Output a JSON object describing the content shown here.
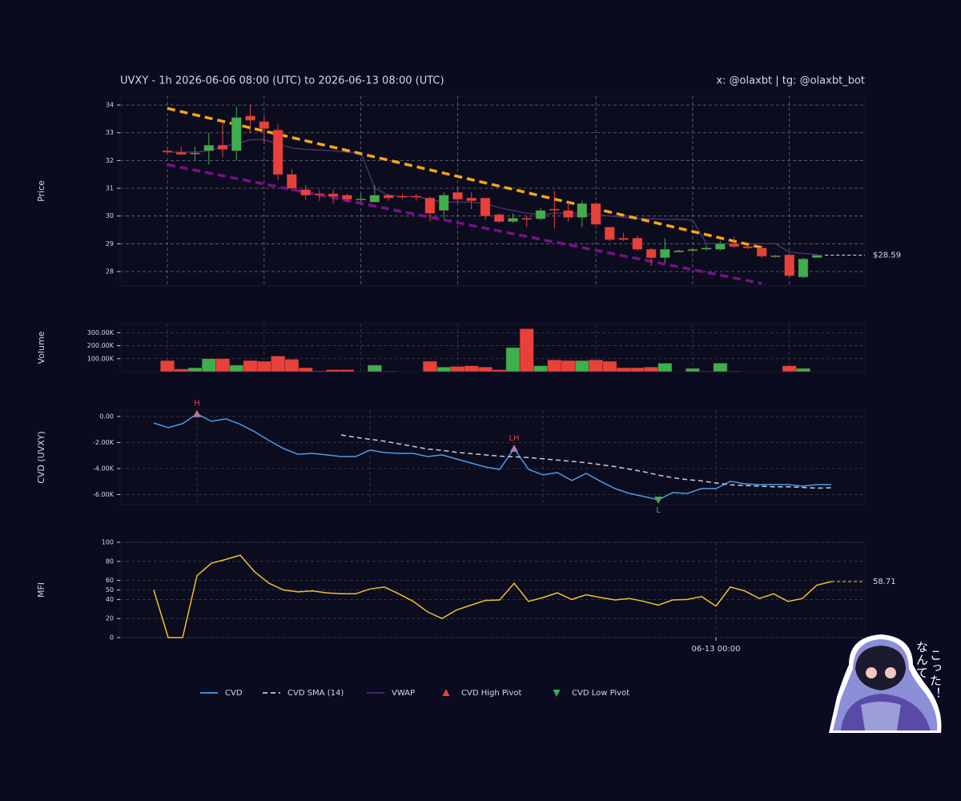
{
  "header": {
    "title": "UVXY - 1h 2026-06-06 08:00 (UTC) to 2026-06-13 08:00 (UTC)",
    "credit": "x: @olaxbt | tg: @olaxbt_bot"
  },
  "chart_data": [
    {
      "type": "candlestick",
      "ylabel": "Price",
      "ylim": [
        27.48,
        34.32
      ],
      "yticks": [
        28,
        29,
        30,
        31,
        32,
        33,
        34
      ],
      "grid": true,
      "up_color": "#3fae4f",
      "down_color": "#e8413b",
      "open": [
        32.35,
        32.3,
        32.25,
        32.35,
        32.55,
        32.35,
        33.6,
        33.4,
        33.1,
        31.5,
        30.95,
        30.8,
        30.8,
        30.75,
        30.6,
        30.5,
        30.75,
        30.72,
        30.72,
        30.65,
        30.2,
        30.85,
        30.65,
        30.65,
        30.05,
        29.8,
        29.92,
        29.9,
        30.25,
        30.2,
        29.95,
        30.45,
        29.6,
        29.2,
        29.2,
        28.8,
        28.5,
        28.7,
        28.75,
        28.8,
        28.8,
        29.0,
        28.9,
        28.85,
        28.53,
        28.6,
        27.8,
        28.5
      ],
      "high": [
        32.45,
        32.5,
        32.5,
        33.0,
        33.4,
        33.95,
        34.0,
        33.6,
        33.3,
        31.7,
        31.1,
        30.95,
        30.95,
        30.8,
        30.8,
        31.1,
        30.8,
        30.8,
        30.8,
        30.7,
        30.85,
        31.05,
        30.85,
        30.65,
        30.1,
        30.1,
        30.0,
        30.3,
        30.9,
        30.5,
        30.55,
        30.5,
        29.6,
        29.4,
        29.3,
        28.85,
        29.2,
        28.8,
        28.85,
        28.95,
        29.1,
        29.25,
        28.95,
        28.95,
        28.6,
        28.65,
        28.5,
        28.6
      ],
      "low": [
        32.25,
        32.2,
        32.0,
        31.85,
        32.1,
        32.0,
        33.0,
        32.6,
        31.3,
        30.9,
        30.6,
        30.55,
        30.45,
        30.5,
        30.5,
        30.5,
        30.55,
        30.6,
        30.55,
        29.8,
        29.9,
        30.5,
        30.25,
        29.85,
        29.75,
        29.75,
        29.6,
        29.85,
        29.55,
        29.8,
        29.6,
        29.7,
        29.1,
        29.1,
        28.75,
        28.2,
        28.3,
        28.7,
        28.7,
        28.75,
        28.75,
        28.85,
        28.8,
        28.5,
        28.5,
        27.8,
        27.75,
        28.5
      ],
      "close": [
        32.3,
        32.22,
        32.27,
        32.55,
        32.4,
        33.55,
        33.45,
        33.15,
        31.5,
        31.0,
        30.75,
        30.75,
        30.7,
        30.6,
        30.62,
        30.75,
        30.65,
        30.68,
        30.68,
        30.1,
        30.75,
        30.6,
        30.55,
        30.0,
        29.8,
        29.92,
        29.88,
        30.2,
        30.22,
        29.95,
        30.45,
        29.7,
        29.15,
        29.15,
        28.8,
        28.5,
        28.8,
        28.75,
        28.8,
        28.85,
        29.0,
        28.9,
        28.85,
        28.55,
        28.57,
        27.85,
        28.45,
        28.59
      ],
      "series": [
        {
          "name": "VWAP",
          "color": "#4a2f6e",
          "values": [
            32.3,
            32.3,
            32.3,
            32.35,
            32.5,
            32.6,
            32.75,
            32.75,
            32.6,
            32.45,
            32.4,
            32.38,
            32.35,
            32.3,
            32.3,
            31.0,
            30.75,
            30.7,
            30.7,
            30.6,
            30.5,
            30.5,
            30.5,
            30.45,
            30.3,
            30.2,
            30.1,
            30.05,
            30.1,
            30.1,
            30.1,
            30.05,
            30.0,
            29.95,
            29.9,
            29.9,
            29.88,
            29.88,
            29.85,
            29.0,
            29.0,
            29.0,
            29.0,
            29.0,
            29.0,
            28.7,
            28.65,
            28.62
          ]
        }
      ],
      "trendlines": [
        {
          "color": "#f5a516",
          "x": [
            0,
            43
          ],
          "y": [
            33.88,
            28.86
          ]
        },
        {
          "color": "#7b0f8a",
          "x": [
            0,
            43
          ],
          "y": [
            31.85,
            27.57
          ]
        }
      ],
      "last_value": 28.59,
      "last_value_label": "$28.59"
    },
    {
      "type": "bar",
      "ylabel": "Volume",
      "ylim": [
        0,
        370000
      ],
      "grid": true,
      "yticks": [
        {
          "value": 100000,
          "label": "100.00K"
        },
        {
          "value": 200000,
          "label": "200.00K"
        },
        {
          "value": 300000,
          "label": "300.00K"
        }
      ],
      "values": [
        85000,
        20000,
        30000,
        100000,
        100000,
        50000,
        85000,
        80000,
        120000,
        95000,
        30000,
        5000,
        15000,
        15000,
        0,
        50000,
        3000,
        0,
        0,
        80000,
        35000,
        40000,
        45000,
        35000,
        15000,
        185000,
        330000,
        45000,
        90000,
        85000,
        85000,
        90000,
        80000,
        30000,
        30000,
        35000,
        65000,
        0,
        25000,
        3000,
        65000,
        3000,
        0,
        0,
        0,
        45000,
        25000,
        0
      ]
    },
    {
      "type": "line",
      "ylabel": "CVD (UVXY)",
      "ylim": [
        -6770,
        490
      ],
      "grid": true,
      "yticks": [
        {
          "value": 0,
          "label": "0.00"
        },
        {
          "value": -2000,
          "label": "-2.00K"
        },
        {
          "value": -4000,
          "label": "-4.00K"
        },
        {
          "value": -6000,
          "label": "-6.00K"
        }
      ],
      "series": [
        {
          "name": "CVD",
          "color": "#4c9be8",
          "values": [
            -500,
            -850,
            -550,
            200,
            -370,
            -180,
            -600,
            -1170,
            -1850,
            -2460,
            -2900,
            -2830,
            -2950,
            -3080,
            -3080,
            -2580,
            -2770,
            -2830,
            -2830,
            -3080,
            -2950,
            -3260,
            -3570,
            -3880,
            -4060,
            -2460,
            -4060,
            -4490,
            -4310,
            -4920,
            -4370,
            -4980,
            -5540,
            -5910,
            -6150,
            -6400,
            -5850,
            -5910,
            -5540,
            -5540,
            -4980,
            -5170,
            -5230,
            -5230,
            -5230,
            -5350,
            -5230,
            -5230
          ]
        },
        {
          "name": "CVD SMA (14)",
          "color": "#c8ccd8",
          "dashed": true,
          "values": [
            null,
            null,
            null,
            null,
            null,
            null,
            null,
            null,
            null,
            null,
            null,
            null,
            null,
            -1420,
            -1600,
            -1750,
            -1900,
            -2100,
            -2300,
            -2500,
            -2600,
            -2750,
            -2850,
            -2950,
            -3050,
            -3100,
            -3150,
            -3250,
            -3350,
            -3450,
            -3550,
            -3700,
            -3850,
            -4050,
            -4250,
            -4500,
            -4700,
            -4850,
            -4950,
            -5100,
            -5250,
            -5300,
            -5350,
            -5400,
            -5400,
            -5450,
            -5500,
            -5480
          ]
        }
      ],
      "pivots": [
        {
          "name": "CVD High Pivot",
          "color": "#e8413b",
          "kind": "high",
          "points": [
            {
              "x": 3,
              "label": "H"
            },
            {
              "x": 25,
              "label": "LH"
            }
          ]
        },
        {
          "name": "CVD Low Pivot",
          "color": "#3fae4f",
          "kind": "low",
          "points": [
            {
              "x": 35,
              "label": "L"
            }
          ]
        }
      ]
    },
    {
      "type": "line",
      "ylabel": "MFI",
      "ylim": [
        0,
        100
      ],
      "yticks": [
        0,
        20,
        40,
        50,
        60,
        80,
        100
      ],
      "grid": true,
      "categories": [
        null,
        null,
        null,
        null,
        null,
        null,
        null,
        null,
        null,
        null,
        null,
        null,
        null,
        null,
        null,
        null,
        null,
        null,
        null,
        null,
        null,
        null,
        null,
        null,
        null,
        null,
        null,
        null,
        null,
        null,
        null,
        null,
        null,
        null,
        null,
        null,
        null,
        null,
        null,
        "06-13 00:00",
        null,
        null,
        null,
        null,
        null,
        null,
        null,
        null
      ],
      "series": [
        {
          "color": "#f0c030",
          "values": [
            50,
            0,
            0,
            65,
            78,
            82,
            86.5,
            69,
            57,
            50,
            48,
            49,
            47,
            46,
            46,
            51,
            53,
            46,
            38,
            27,
            20,
            29,
            34,
            39,
            39.5,
            57,
            38,
            42,
            47,
            40,
            45,
            42,
            39.5,
            41,
            38,
            34,
            39.5,
            40,
            43,
            33,
            53,
            49,
            41,
            46,
            38,
            41,
            55,
            58.71
          ]
        }
      ],
      "last_value": 58.71,
      "last_value_label": "58.71"
    }
  ],
  "sticker": {
    "lines": [
      "なんて",
      "こった！"
    ]
  }
}
